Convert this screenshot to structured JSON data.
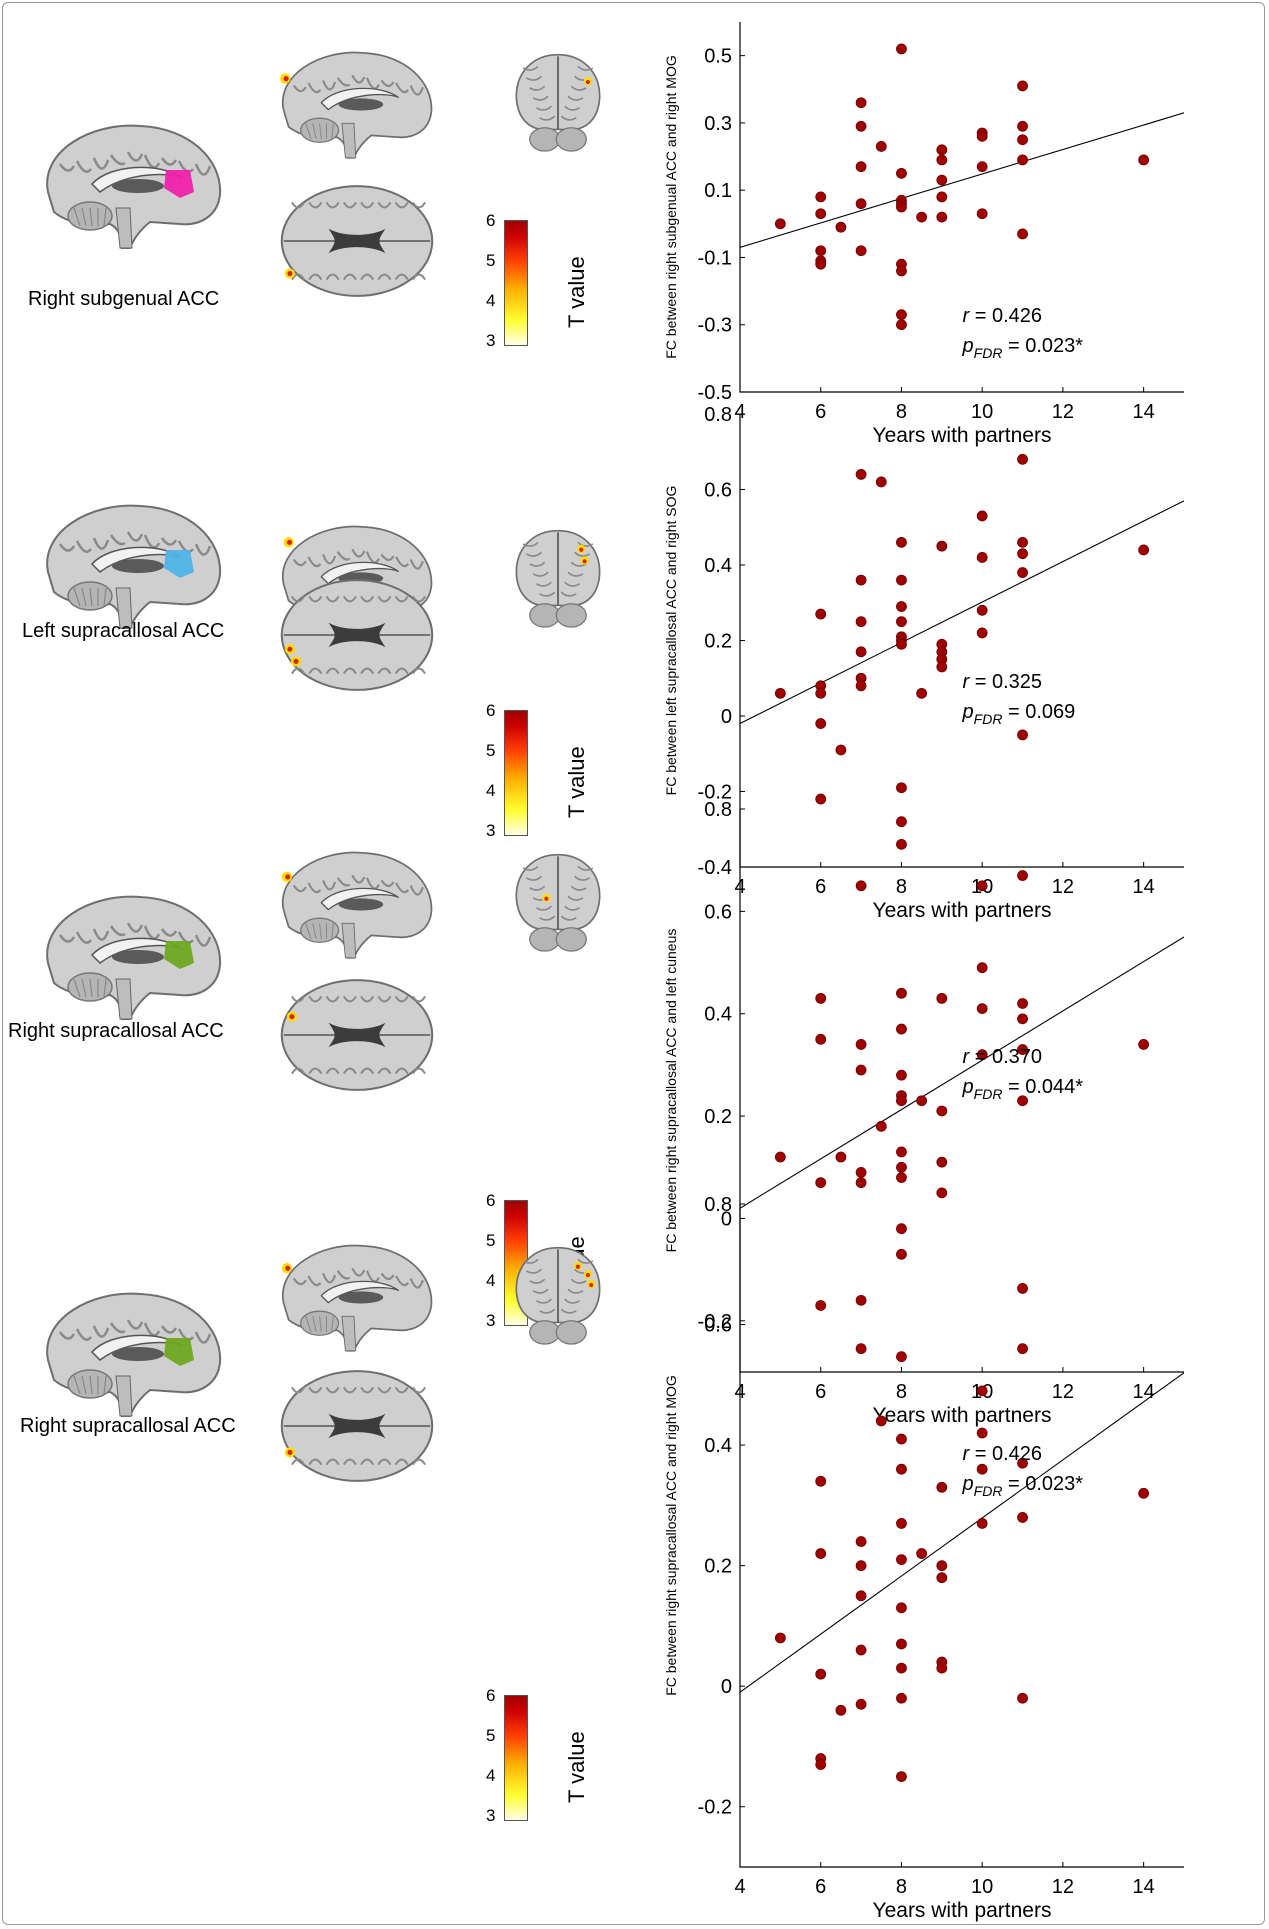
{
  "colorbar": {
    "ticks": [
      "6",
      "5",
      "4",
      "3"
    ],
    "title": "T value"
  },
  "panels": [
    {
      "region_label": "Right subgenual ACC",
      "roi_color": "#ee22aa",
      "stat_r_label": "r",
      "stat_r_value": " = 0.426",
      "stat_p_label": "p",
      "stat_p_sub": "FDR",
      "stat_p_value": " = 0.023*"
    },
    {
      "region_label": "Left supracallosal ACC",
      "roi_color": "#4fb4e8",
      "stat_r_label": "r",
      "stat_r_value": " = 0.325",
      "stat_p_label": "p",
      "stat_p_sub": "FDR",
      "stat_p_value": " = 0.069"
    },
    {
      "region_label": "Right supracallosal ACC",
      "roi_color": "#6fa820",
      "stat_r_label": "r",
      "stat_r_value": " = 0.370",
      "stat_p_label": "p",
      "stat_p_sub": "FDR",
      "stat_p_value": " = 0.044*"
    },
    {
      "region_label": "Right supracallosal ACC",
      "roi_color": "#6fa820",
      "stat_r_label": "r",
      "stat_r_value": " = 0.426",
      "stat_p_label": "p",
      "stat_p_sub": "FDR",
      "stat_p_value": " = 0.023*"
    }
  ],
  "chart_data": [
    {
      "type": "scatter",
      "xlabel": "Years with partners",
      "ylabel": "FC between right subgenual ACC and right MOG",
      "xlim": [
        4,
        15
      ],
      "ylim": [
        -0.5,
        0.6
      ],
      "xticks": [
        4,
        6,
        8,
        10,
        12,
        14
      ],
      "yticks": [
        -0.5,
        -0.3,
        -0.1,
        0.1,
        0.3,
        0.5
      ],
      "ytick_labels": [
        "-0.5",
        "-0.3",
        "-0.1",
        "0.1",
        "0.3",
        "0.5"
      ],
      "fit_line": {
        "x": [
          4,
          15
        ],
        "y": [
          -0.07,
          0.33
        ]
      },
      "point_color": "#a00000",
      "points": [
        [
          5,
          0.0
        ],
        [
          6,
          0.08
        ],
        [
          6,
          0.03
        ],
        [
          6,
          -0.08
        ],
        [
          6,
          -0.11
        ],
        [
          6,
          -0.12
        ],
        [
          6.5,
          -0.01
        ],
        [
          7,
          0.36
        ],
        [
          7,
          0.29
        ],
        [
          7,
          0.17
        ],
        [
          7,
          0.06
        ],
        [
          7,
          -0.08
        ],
        [
          7.5,
          0.23
        ],
        [
          8,
          0.52
        ],
        [
          8,
          0.15
        ],
        [
          8,
          0.07
        ],
        [
          8,
          0.06
        ],
        [
          8,
          0.05
        ],
        [
          8,
          -0.12
        ],
        [
          8,
          -0.14
        ],
        [
          8,
          -0.27
        ],
        [
          8,
          -0.3
        ],
        [
          8.5,
          0.02
        ],
        [
          9,
          0.22
        ],
        [
          9,
          0.19
        ],
        [
          9,
          0.13
        ],
        [
          9,
          0.08
        ],
        [
          9,
          0.02
        ],
        [
          10,
          0.27
        ],
        [
          10,
          0.26
        ],
        [
          10,
          0.17
        ],
        [
          10,
          0.03
        ],
        [
          11,
          0.41
        ],
        [
          11,
          0.29
        ],
        [
          11,
          0.25
        ],
        [
          11,
          0.19
        ],
        [
          11,
          -0.03
        ],
        [
          14,
          0.19
        ]
      ]
    },
    {
      "type": "scatter",
      "xlabel": "Years with partners",
      "ylabel": "FC between left supracallosal ACC and right SOG",
      "xlim": [
        4,
        15
      ],
      "ylim": [
        -0.4,
        0.8
      ],
      "xticks": [
        4,
        6,
        8,
        10,
        12,
        14
      ],
      "yticks": [
        -0.4,
        -0.2,
        0,
        0.2,
        0.4,
        0.6,
        0.8
      ],
      "ytick_labels": [
        "-0.4",
        "-0.2",
        "0",
        "0.2",
        "0.4",
        "0.6",
        "0.8"
      ],
      "fit_line": {
        "x": [
          4,
          15
        ],
        "y": [
          -0.02,
          0.57
        ]
      },
      "point_color": "#a00000",
      "points": [
        [
          5,
          0.06
        ],
        [
          6,
          0.27
        ],
        [
          6,
          0.08
        ],
        [
          6,
          0.06
        ],
        [
          6,
          -0.02
        ],
        [
          6,
          -0.22
        ],
        [
          6.5,
          -0.09
        ],
        [
          7,
          0.64
        ],
        [
          7,
          0.36
        ],
        [
          7,
          0.25
        ],
        [
          7,
          0.17
        ],
        [
          7,
          0.1
        ],
        [
          7,
          0.08
        ],
        [
          7.5,
          0.62
        ],
        [
          8,
          0.46
        ],
        [
          8,
          0.36
        ],
        [
          8,
          0.29
        ],
        [
          8,
          0.25
        ],
        [
          8,
          0.21
        ],
        [
          8,
          0.2
        ],
        [
          8,
          0.19
        ],
        [
          8,
          -0.19
        ],
        [
          8,
          -0.28
        ],
        [
          8,
          -0.34
        ],
        [
          8.5,
          0.06
        ],
        [
          9,
          0.45
        ],
        [
          9,
          0.19
        ],
        [
          9,
          0.17
        ],
        [
          9,
          0.15
        ],
        [
          9,
          0.13
        ],
        [
          10,
          0.53
        ],
        [
          10,
          0.42
        ],
        [
          10,
          0.28
        ],
        [
          10,
          0.22
        ],
        [
          11,
          0.68
        ],
        [
          11,
          0.46
        ],
        [
          11,
          0.43
        ],
        [
          11,
          0.38
        ],
        [
          11,
          -0.05
        ],
        [
          14,
          0.44
        ]
      ]
    },
    {
      "type": "scatter",
      "xlabel": "Years with partners",
      "ylabel": "FC between right supracallosal ACC and left cuneus",
      "xlim": [
        4,
        15
      ],
      "ylim": [
        -0.3,
        0.8
      ],
      "xticks": [
        4,
        6,
        8,
        10,
        12,
        14
      ],
      "yticks": [
        -0.2,
        0,
        0.2,
        0.4,
        0.6,
        0.8
      ],
      "ytick_labels": [
        "-0.2",
        "0",
        "0.2",
        "0.4",
        "0.6",
        "0.8"
      ],
      "fit_line": {
        "x": [
          4,
          15
        ],
        "y": [
          0.02,
          0.55
        ]
      },
      "point_color": "#a00000",
      "points": [
        [
          5,
          0.12
        ],
        [
          6,
          0.43
        ],
        [
          6,
          0.35
        ],
        [
          6,
          0.07
        ],
        [
          6,
          -0.17
        ],
        [
          6.5,
          0.12
        ],
        [
          7,
          0.65
        ],
        [
          7,
          0.34
        ],
        [
          7,
          0.29
        ],
        [
          7,
          0.09
        ],
        [
          7,
          0.07
        ],
        [
          7,
          -0.16
        ],
        [
          7.5,
          0.18
        ],
        [
          8,
          0.44
        ],
        [
          8,
          0.37
        ],
        [
          8,
          0.28
        ],
        [
          8,
          0.24
        ],
        [
          8,
          0.23
        ],
        [
          8,
          0.13
        ],
        [
          8,
          0.1
        ],
        [
          8,
          0.08
        ],
        [
          8,
          -0.02
        ],
        [
          8,
          -0.07
        ],
        [
          8,
          -0.27
        ],
        [
          8.5,
          0.23
        ],
        [
          9,
          0.43
        ],
        [
          9,
          0.21
        ],
        [
          9,
          0.11
        ],
        [
          9,
          0.05
        ],
        [
          10,
          0.65
        ],
        [
          10,
          0.49
        ],
        [
          10,
          0.41
        ],
        [
          10,
          0.32
        ],
        [
          11,
          0.67
        ],
        [
          11,
          0.42
        ],
        [
          11,
          0.39
        ],
        [
          11,
          0.33
        ],
        [
          11,
          0.23
        ],
        [
          14,
          0.34
        ]
      ]
    },
    {
      "type": "scatter",
      "xlabel": "Years with partners",
      "ylabel": "FC between right supracallosal ACC and right MOG",
      "xlim": [
        4,
        15
      ],
      "ylim": [
        -0.3,
        0.8
      ],
      "xticks": [
        4,
        6,
        8,
        10,
        12,
        14
      ],
      "yticks": [
        -0.2,
        0,
        0.2,
        0.4,
        0.6,
        0.8
      ],
      "ytick_labels": [
        "-0.2",
        "0",
        "0.2",
        "0.4",
        "0.6",
        "0.8"
      ],
      "fit_line": {
        "x": [
          4,
          15
        ],
        "y": [
          -0.01,
          0.52
        ]
      },
      "point_color": "#a00000",
      "points": [
        [
          5,
          0.08
        ],
        [
          6,
          0.34
        ],
        [
          6,
          0.22
        ],
        [
          6,
          0.02
        ],
        [
          6,
          -0.12
        ],
        [
          6,
          -0.13
        ],
        [
          6.5,
          -0.04
        ],
        [
          7,
          0.56
        ],
        [
          7,
          0.24
        ],
        [
          7,
          0.2
        ],
        [
          7,
          0.15
        ],
        [
          7,
          0.06
        ],
        [
          7,
          -0.03
        ],
        [
          7.5,
          0.44
        ],
        [
          8,
          0.41
        ],
        [
          8,
          0.36
        ],
        [
          8,
          0.27
        ],
        [
          8,
          0.21
        ],
        [
          8,
          0.13
        ],
        [
          8,
          0.07
        ],
        [
          8,
          0.03
        ],
        [
          8,
          -0.02
        ],
        [
          8,
          -0.15
        ],
        [
          8.5,
          0.22
        ],
        [
          9,
          0.33
        ],
        [
          9,
          0.2
        ],
        [
          9,
          0.18
        ],
        [
          9,
          0.04
        ],
        [
          9,
          0.03
        ],
        [
          10,
          0.49
        ],
        [
          10,
          0.42
        ],
        [
          10,
          0.36
        ],
        [
          10,
          0.27
        ],
        [
          11,
          0.66
        ],
        [
          11,
          0.56
        ],
        [
          11,
          0.37
        ],
        [
          11,
          0.28
        ],
        [
          11,
          -0.02
        ],
        [
          14,
          0.32
        ]
      ]
    }
  ]
}
